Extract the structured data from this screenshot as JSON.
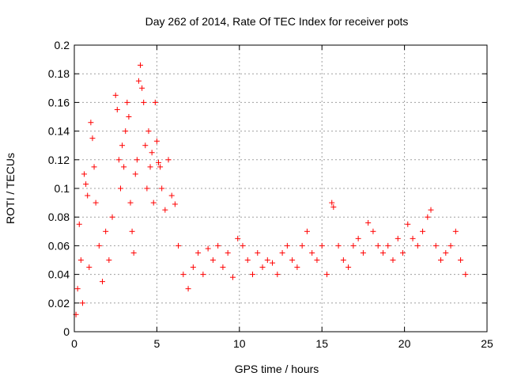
{
  "chart_data": {
    "type": "scatter",
    "title": "Day 262 of 2014, Rate Of TEC Index for receiver pots",
    "xlabel": "GPS time / hours",
    "ylabel": "ROTI / TECUs",
    "xlim": [
      0,
      25
    ],
    "ylim": [
      0,
      0.2
    ],
    "xticks": [
      0,
      5,
      10,
      15,
      20,
      25
    ],
    "xtick_labels": [
      "0",
      "5",
      "10",
      "15",
      "20",
      "25"
    ],
    "yticks": [
      0,
      0.02,
      0.04,
      0.06,
      0.08,
      0.1,
      0.12,
      0.14,
      0.16,
      0.18,
      0.2
    ],
    "ytick_labels": [
      "0",
      "0.02",
      "0.04",
      "0.06",
      "0.08",
      "0.1",
      "0.12",
      "0.14",
      "0.16",
      "0.18",
      "0.2"
    ],
    "grid": true,
    "marker": "+",
    "color": "#ff0000",
    "series": [
      {
        "points": [
          [
            0.1,
            0.012
          ],
          [
            0.2,
            0.03
          ],
          [
            0.3,
            0.075
          ],
          [
            0.4,
            0.05
          ],
          [
            0.5,
            0.02
          ],
          [
            0.6,
            0.11
          ],
          [
            0.7,
            0.103
          ],
          [
            0.8,
            0.095
          ],
          [
            0.9,
            0.045
          ],
          [
            1.0,
            0.146
          ],
          [
            1.1,
            0.135
          ],
          [
            1.2,
            0.115
          ],
          [
            1.3,
            0.09
          ],
          [
            1.5,
            0.06
          ],
          [
            1.7,
            0.035
          ],
          [
            1.9,
            0.07
          ],
          [
            2.1,
            0.05
          ],
          [
            2.3,
            0.08
          ],
          [
            2.5,
            0.165
          ],
          [
            2.6,
            0.155
          ],
          [
            2.7,
            0.12
          ],
          [
            2.8,
            0.1
          ],
          [
            2.9,
            0.13
          ],
          [
            3.0,
            0.115
          ],
          [
            3.1,
            0.14
          ],
          [
            3.2,
            0.16
          ],
          [
            3.3,
            0.15
          ],
          [
            3.4,
            0.09
          ],
          [
            3.5,
            0.07
          ],
          [
            3.6,
            0.055
          ],
          [
            3.7,
            0.11
          ],
          [
            3.8,
            0.12
          ],
          [
            3.9,
            0.175
          ],
          [
            4.0,
            0.186
          ],
          [
            4.1,
            0.17
          ],
          [
            4.2,
            0.16
          ],
          [
            4.3,
            0.13
          ],
          [
            4.4,
            0.1
          ],
          [
            4.5,
            0.14
          ],
          [
            4.6,
            0.115
          ],
          [
            4.7,
            0.125
          ],
          [
            4.8,
            0.09
          ],
          [
            4.9,
            0.16
          ],
          [
            5.0,
            0.133
          ],
          [
            5.1,
            0.118
          ],
          [
            5.2,
            0.115
          ],
          [
            5.3,
            0.1
          ],
          [
            5.5,
            0.085
          ],
          [
            5.7,
            0.12
          ],
          [
            5.9,
            0.095
          ],
          [
            6.1,
            0.089
          ],
          [
            6.3,
            0.06
          ],
          [
            6.6,
            0.04
          ],
          [
            6.9,
            0.03
          ],
          [
            7.2,
            0.045
          ],
          [
            7.5,
            0.055
          ],
          [
            7.8,
            0.04
          ],
          [
            8.1,
            0.058
          ],
          [
            8.4,
            0.05
          ],
          [
            8.7,
            0.06
          ],
          [
            9.0,
            0.045
          ],
          [
            9.3,
            0.055
          ],
          [
            9.6,
            0.038
          ],
          [
            9.9,
            0.065
          ],
          [
            10.2,
            0.06
          ],
          [
            10.5,
            0.05
          ],
          [
            10.8,
            0.04
          ],
          [
            11.1,
            0.055
          ],
          [
            11.4,
            0.045
          ],
          [
            11.7,
            0.05
          ],
          [
            12.0,
            0.048
          ],
          [
            12.3,
            0.04
          ],
          [
            12.6,
            0.055
          ],
          [
            12.9,
            0.06
          ],
          [
            13.2,
            0.05
          ],
          [
            13.5,
            0.045
          ],
          [
            13.8,
            0.06
          ],
          [
            14.1,
            0.07
          ],
          [
            14.4,
            0.055
          ],
          [
            14.7,
            0.05
          ],
          [
            15.0,
            0.06
          ],
          [
            15.3,
            0.04
          ],
          [
            15.6,
            0.09
          ],
          [
            15.7,
            0.087
          ],
          [
            16.0,
            0.06
          ],
          [
            16.3,
            0.05
          ],
          [
            16.6,
            0.045
          ],
          [
            16.9,
            0.06
          ],
          [
            17.2,
            0.065
          ],
          [
            17.5,
            0.055
          ],
          [
            17.8,
            0.076
          ],
          [
            18.1,
            0.07
          ],
          [
            18.4,
            0.06
          ],
          [
            18.7,
            0.055
          ],
          [
            19.0,
            0.06
          ],
          [
            19.3,
            0.05
          ],
          [
            19.6,
            0.065
          ],
          [
            19.9,
            0.055
          ],
          [
            20.2,
            0.075
          ],
          [
            20.5,
            0.065
          ],
          [
            20.8,
            0.06
          ],
          [
            21.1,
            0.07
          ],
          [
            21.4,
            0.08
          ],
          [
            21.6,
            0.085
          ],
          [
            21.9,
            0.06
          ],
          [
            22.2,
            0.05
          ],
          [
            22.5,
            0.055
          ],
          [
            22.8,
            0.06
          ],
          [
            23.1,
            0.07
          ],
          [
            23.4,
            0.05
          ],
          [
            23.7,
            0.04
          ]
        ]
      }
    ]
  }
}
